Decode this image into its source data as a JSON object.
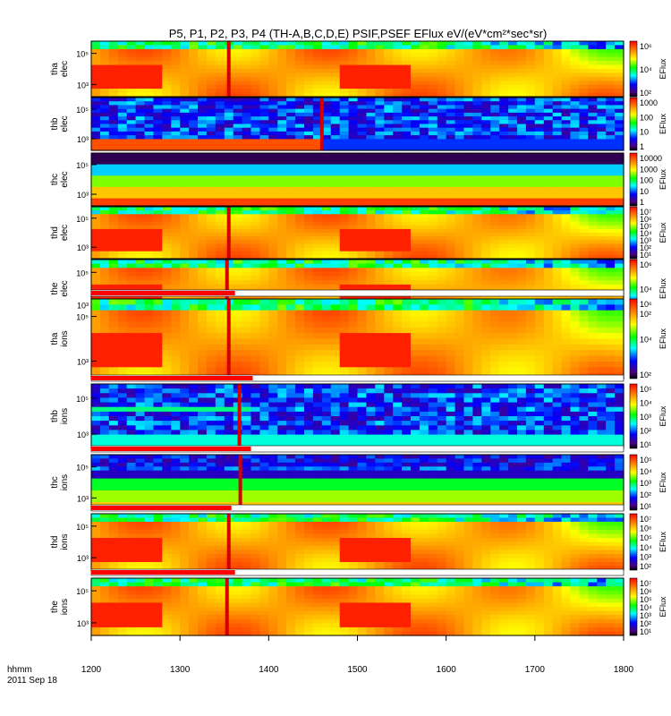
{
  "chart_data": {
    "type": "heatmap",
    "title": "P5, P1, P2, P3, P4 (TH-A,B,C,D,E) PSIF,PSEF EFlux eV/(eV*cm²*sec*sr)",
    "x_ticks": [
      "1200",
      "1300",
      "1400",
      "1500",
      "1600",
      "1700",
      "1800"
    ],
    "x_label_line1": "hhmm",
    "x_label_line2": "2011 Sep 18",
    "xlim": [
      1200,
      1800
    ],
    "colorbar_label": "EFlux",
    "panels": [
      {
        "probe": "tha",
        "species": "elec",
        "y_ticks": [
          "10⁵",
          "10³"
        ],
        "cb_ticks": [
          "10⁶",
          "10⁴",
          "10²"
        ],
        "style": "smooth",
        "spike_x": 1355
      },
      {
        "probe": "thb",
        "species": "elec",
        "y_ticks": [
          "10⁵",
          "10³"
        ],
        "cb_ticks": [
          "1000",
          "100",
          "10",
          "1"
        ],
        "style": "noisy",
        "spike_x": 1460
      },
      {
        "probe": "thc",
        "species": "elec",
        "y_ticks": [
          "10⁵",
          "10³"
        ],
        "cb_ticks": [
          "10000",
          "1000",
          "100",
          "10",
          "1"
        ],
        "style": "bands"
      },
      {
        "probe": "thd",
        "species": "elec",
        "y_ticks": [
          "10⁵",
          "10³"
        ],
        "cb_ticks": [
          "10⁷",
          "10⁶",
          "10⁵",
          "10⁴",
          "10³",
          "10²",
          "10¹"
        ],
        "style": "smooth",
        "spike_x": 1355
      },
      {
        "probe": "the",
        "species": "elec",
        "y_ticks": [
          "10⁵",
          "10³"
        ],
        "cb_ticks": [
          "10⁶",
          "10⁴",
          "10²"
        ],
        "style": "smooth",
        "spike_x": 1353
      },
      {
        "probe": "tha",
        "species": "ions",
        "y_ticks": [
          "10⁵",
          "10³"
        ],
        "cb_ticks": [
          "10⁶",
          "10⁴",
          "10²"
        ],
        "style": "smooth",
        "spike_x": 1355,
        "mode_bar_end": 1362
      },
      {
        "probe": "thb",
        "species": "ions",
        "y_ticks": [
          "10⁵",
          "10³"
        ],
        "cb_ticks": [
          "10⁵",
          "10⁴",
          "10³",
          "10²",
          "10¹"
        ],
        "style": "noisy-ions",
        "spike_x": 1367,
        "mode_bar_end": 1382
      },
      {
        "probe": "thc",
        "species": "ions",
        "y_ticks": [
          "10⁵",
          "10³"
        ],
        "cb_ticks": [
          "10⁵",
          "10⁴",
          "10³",
          "10²",
          "10¹"
        ],
        "style": "bands-ions",
        "spike_x": 1368,
        "mode_bar_end": 1380
      },
      {
        "probe": "thd",
        "species": "ions",
        "y_ticks": [
          "10⁵",
          "10³"
        ],
        "cb_ticks": [
          "10⁷",
          "10⁶",
          "10⁵",
          "10⁴",
          "10³",
          "10²"
        ],
        "style": "smooth",
        "spike_x": 1355,
        "mode_bar_end": 1358
      },
      {
        "probe": "the",
        "species": "ions",
        "y_ticks": [
          "10⁵",
          "10³"
        ],
        "cb_ticks": [
          "10⁷",
          "10⁶",
          "10⁵",
          "10⁴",
          "10³",
          "10²",
          "10¹"
        ],
        "style": "smooth",
        "spike_x": 1353,
        "mode_bar_end": 1362
      }
    ]
  }
}
